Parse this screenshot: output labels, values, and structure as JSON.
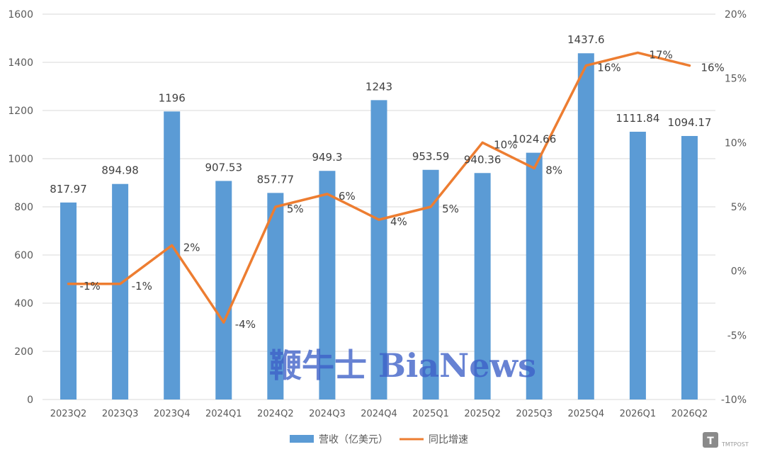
{
  "chart_data": {
    "type": "bar",
    "categories": [
      "2023Q2",
      "2023Q3",
      "2023Q4",
      "2024Q1",
      "2024Q2",
      "2024Q3",
      "2024Q4",
      "2025Q1",
      "2025Q2",
      "2025Q3",
      "2025Q4",
      "2026Q1",
      "2026Q2"
    ],
    "series": [
      {
        "name": "营收（亿美元）",
        "type": "bar",
        "axis": "left",
        "color": "#5b9bd5",
        "values": [
          817.97,
          894.98,
          1196,
          907.53,
          857.77,
          949.3,
          1243,
          953.59,
          940.36,
          1024.66,
          1437.6,
          1111.84,
          1094.17
        ],
        "labels": [
          "817.97",
          "894.98",
          "1196",
          "907.53",
          "857.77",
          "949.3",
          "1243",
          "953.59",
          "940.36",
          "1024.66",
          "1437.6",
          "1111.84",
          "1094.17"
        ]
      },
      {
        "name": "同比增速",
        "type": "line",
        "axis": "right",
        "color": "#ed7d31",
        "values": [
          -1,
          -1,
          2,
          -4,
          5,
          6,
          4,
          5,
          10,
          8,
          16,
          17,
          16
        ],
        "labels": [
          "-1%",
          "-1%",
          "2%",
          "-4%",
          "5%",
          "6%",
          "4%",
          "5%",
          "10%",
          "8%",
          "16%",
          "17%",
          "16%"
        ]
      }
    ],
    "y_left": {
      "min": 0,
      "max": 1600,
      "ticks": [
        "0",
        "200",
        "400",
        "600",
        "800",
        "1000",
        "1200",
        "1400",
        "1600"
      ]
    },
    "y_right": {
      "min": -10,
      "max": 20,
      "ticks": [
        "-10%",
        "-5%",
        "0%",
        "5%",
        "10%",
        "15%",
        "20%"
      ]
    },
    "grid": true,
    "legend_position": "bottom"
  },
  "watermark": "鞭牛士 BiaNews",
  "logo": {
    "icon": "tmtpost-logo",
    "text": "TMTPOST"
  }
}
